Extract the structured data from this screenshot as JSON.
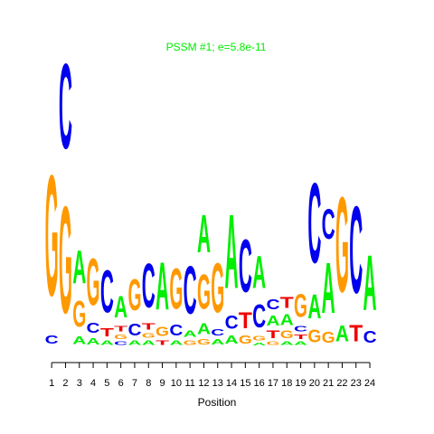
{
  "chart_data": {
    "type": "sequence-logo",
    "title": "PSSM #1; e=5.8e-11",
    "title_color": "#00ee00",
    "xlabel": "Position",
    "ylabel": "",
    "ylim": [
      0,
      2
    ],
    "x_ticks": [
      "1",
      "2",
      "3",
      "4",
      "5",
      "6",
      "7",
      "8",
      "9",
      "10",
      "11",
      "12",
      "13",
      "14",
      "15",
      "16",
      "17",
      "18",
      "19",
      "20",
      "21",
      "22",
      "23",
      "24"
    ],
    "letter_colors": {
      "A": "#00ee00",
      "C": "#0000ee",
      "G": "#ff9900",
      "T": "#ee0000"
    },
    "positions": [
      {
        "position": 1,
        "letters": [
          {
            "base": "C",
            "height": 0.09
          },
          {
            "base": "G",
            "height": 1.32
          }
        ]
      },
      {
        "position": 2,
        "letters": [
          {
            "base": "G",
            "height": 1.17
          },
          {
            "base": "C",
            "height": 0.93
          }
        ]
      },
      {
        "position": 3,
        "letters": [
          {
            "base": "A",
            "height": 0.08
          },
          {
            "base": "G",
            "height": 0.28
          },
          {
            "base": "A",
            "height": 0.36
          }
        ]
      },
      {
        "position": 4,
        "letters": [
          {
            "base": "A",
            "height": 0.07
          },
          {
            "base": "C",
            "height": 0.11
          },
          {
            "base": "G",
            "height": 0.51
          }
        ]
      },
      {
        "position": 5,
        "letters": [
          {
            "base": "A",
            "height": 0.05
          },
          {
            "base": "T",
            "height": 0.09
          },
          {
            "base": "C",
            "height": 0.46
          }
        ]
      },
      {
        "position": 6,
        "letters": [
          {
            "base": "C",
            "height": 0.04
          },
          {
            "base": "G",
            "height": 0.05
          },
          {
            "base": "T",
            "height": 0.06
          },
          {
            "base": "A",
            "height": 0.24
          }
        ]
      },
      {
        "position": 7,
        "letters": [
          {
            "base": "A",
            "height": 0.05
          },
          {
            "base": "C",
            "height": 0.13
          },
          {
            "base": "G",
            "height": 0.34
          }
        ]
      },
      {
        "position": 8,
        "letters": [
          {
            "base": "A",
            "height": 0.05
          },
          {
            "base": "G",
            "height": 0.05
          },
          {
            "base": "T",
            "height": 0.07
          },
          {
            "base": "C",
            "height": 0.48
          }
        ]
      },
      {
        "position": 9,
        "letters": [
          {
            "base": "T",
            "height": 0.05
          },
          {
            "base": "G",
            "height": 0.1
          },
          {
            "base": "A",
            "height": 0.52
          }
        ]
      },
      {
        "position": 10,
        "letters": [
          {
            "base": "A",
            "height": 0.05
          },
          {
            "base": "C",
            "height": 0.12
          },
          {
            "base": "G",
            "height": 0.44
          }
        ]
      },
      {
        "position": 11,
        "letters": [
          {
            "base": "G",
            "height": 0.05
          },
          {
            "base": "A",
            "height": 0.07
          },
          {
            "base": "C",
            "height": 0.52
          }
        ]
      },
      {
        "position": 12,
        "letters": [
          {
            "base": "G",
            "height": 0.06
          },
          {
            "base": "A",
            "height": 0.12
          },
          {
            "base": "G",
            "height": 0.38
          },
          {
            "base": "A",
            "height": 0.41
          }
        ]
      },
      {
        "position": 13,
        "letters": [
          {
            "base": "A",
            "height": 0.06
          },
          {
            "base": "C",
            "height": 0.07
          },
          {
            "base": "G",
            "height": 0.54
          }
        ]
      },
      {
        "position": 14,
        "letters": [
          {
            "base": "A",
            "height": 0.09
          },
          {
            "base": "C",
            "height": 0.15
          },
          {
            "base": "A",
            "height": 0.81
          }
        ]
      },
      {
        "position": 15,
        "letters": [
          {
            "base": "G",
            "height": 0.09
          },
          {
            "base": "T",
            "height": 0.17
          },
          {
            "base": "C",
            "height": 0.58
          }
        ]
      },
      {
        "position": 16,
        "letters": [
          {
            "base": "A",
            "height": 0.03
          },
          {
            "base": "G",
            "height": 0.05
          },
          {
            "base": "C",
            "height": 0.25
          },
          {
            "base": "A",
            "height": 0.35
          }
        ]
      },
      {
        "position": 17,
        "letters": [
          {
            "base": "G",
            "height": 0.04
          },
          {
            "base": "T",
            "height": 0.08
          },
          {
            "base": "A",
            "height": 0.11
          },
          {
            "base": "C",
            "height": 0.11
          }
        ]
      },
      {
        "position": 18,
        "letters": [
          {
            "base": "A",
            "height": 0.04
          },
          {
            "base": "G",
            "height": 0.08
          },
          {
            "base": "A",
            "height": 0.12
          },
          {
            "base": "T",
            "height": 0.12
          }
        ]
      },
      {
        "position": 19,
        "letters": [
          {
            "base": "A",
            "height": 0.04
          },
          {
            "base": "T",
            "height": 0.05
          },
          {
            "base": "C",
            "height": 0.06
          },
          {
            "base": "G",
            "height": 0.25
          }
        ]
      },
      {
        "position": 20,
        "letters": [
          {
            "base": "G",
            "height": 0.14
          },
          {
            "base": "A",
            "height": 0.26
          },
          {
            "base": "C",
            "height": 0.87
          }
        ]
      },
      {
        "position": 21,
        "letters": [
          {
            "base": "G",
            "height": 0.12
          },
          {
            "base": "A",
            "height": 0.55
          },
          {
            "base": "C",
            "height": 0.33
          }
        ]
      },
      {
        "position": 22,
        "letters": [
          {
            "base": "A",
            "height": 0.17
          },
          {
            "base": "G",
            "height": 1.04
          }
        ]
      },
      {
        "position": 23,
        "letters": [
          {
            "base": "T",
            "height": 0.18
          },
          {
            "base": "C",
            "height": 0.95
          }
        ]
      },
      {
        "position": 24,
        "letters": [
          {
            "base": "C",
            "height": 0.13
          },
          {
            "base": "A",
            "height": 0.6
          }
        ]
      }
    ]
  }
}
